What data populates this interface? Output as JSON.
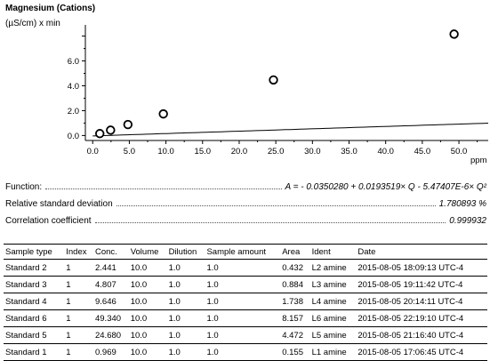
{
  "chart_data": {
    "type": "scatter",
    "title": "Magnesium (Cations)",
    "ylabel": "(µS/cm) x min",
    "xlabel": "ppm",
    "xlim": [
      -1,
      54
    ],
    "ylim": [
      -0.4,
      8.9
    ],
    "x_ticks": [
      "0.0",
      "5.0",
      "10.0",
      "15.0",
      "20.0",
      "25.0",
      "30.0",
      "35.0",
      "40.0",
      "45.0",
      "50.0"
    ],
    "y_ticks": [
      "0.0",
      "2.0",
      "4.0",
      "6.0"
    ],
    "points": [
      {
        "x": 0.969,
        "y": 0.155
      },
      {
        "x": 2.441,
        "y": 0.432
      },
      {
        "x": 4.807,
        "y": 0.884
      },
      {
        "x": 9.646,
        "y": 1.738
      },
      {
        "x": 24.68,
        "y": 4.472
      },
      {
        "x": 49.34,
        "y": 8.157
      }
    ],
    "fit": {
      "a": -0.035028,
      "b": 0.0193519,
      "c": -5.47407e-06,
      "x_start": 0,
      "x_end": 54
    }
  },
  "function_block": {
    "function_label": "Function:",
    "function_value": "A = - 0.0350280 + 0.0193519× Q - 5.47407E-6× Q²",
    "rsd_label": "Relative standard deviation",
    "rsd_value": "1.780893 %",
    "corr_label": "Correlation coefficient",
    "corr_value": "0.999932"
  },
  "table": {
    "headers": [
      "Sample type",
      "Index",
      "Conc.",
      "Volume",
      "Dilution",
      "Sample amount",
      "Area",
      "Ident",
      "Date"
    ],
    "rows": [
      [
        "Standard 2",
        "1",
        "2.441",
        "10.0",
        "1.0",
        "1.0",
        "0.432",
        "L2 amine",
        "2015-08-05 18:09:13 UTC-4"
      ],
      [
        "Standard 3",
        "1",
        "4.807",
        "10.0",
        "1.0",
        "1.0",
        "0.884",
        "L3 amine",
        "2015-08-05 19:11:42 UTC-4"
      ],
      [
        "Standard 4",
        "1",
        "9.646",
        "10.0",
        "1.0",
        "1.0",
        "1.738",
        "L4 amine",
        "2015-08-05 20:14:11 UTC-4"
      ],
      [
        "Standard 6",
        "1",
        "49.340",
        "10.0",
        "1.0",
        "1.0",
        "8.157",
        "L6 amine",
        "2015-08-05 22:19:10 UTC-4"
      ],
      [
        "Standard 5",
        "1",
        "24.680",
        "10.0",
        "1.0",
        "1.0",
        "4.472",
        "L5 amine",
        "2015-08-05 21:16:40 UTC-4"
      ],
      [
        "Standard 1",
        "1",
        "0.969",
        "10.0",
        "1.0",
        "1.0",
        "0.155",
        "L1 amine",
        "2015-08-05 17:06:45 UTC-4"
      ]
    ]
  }
}
